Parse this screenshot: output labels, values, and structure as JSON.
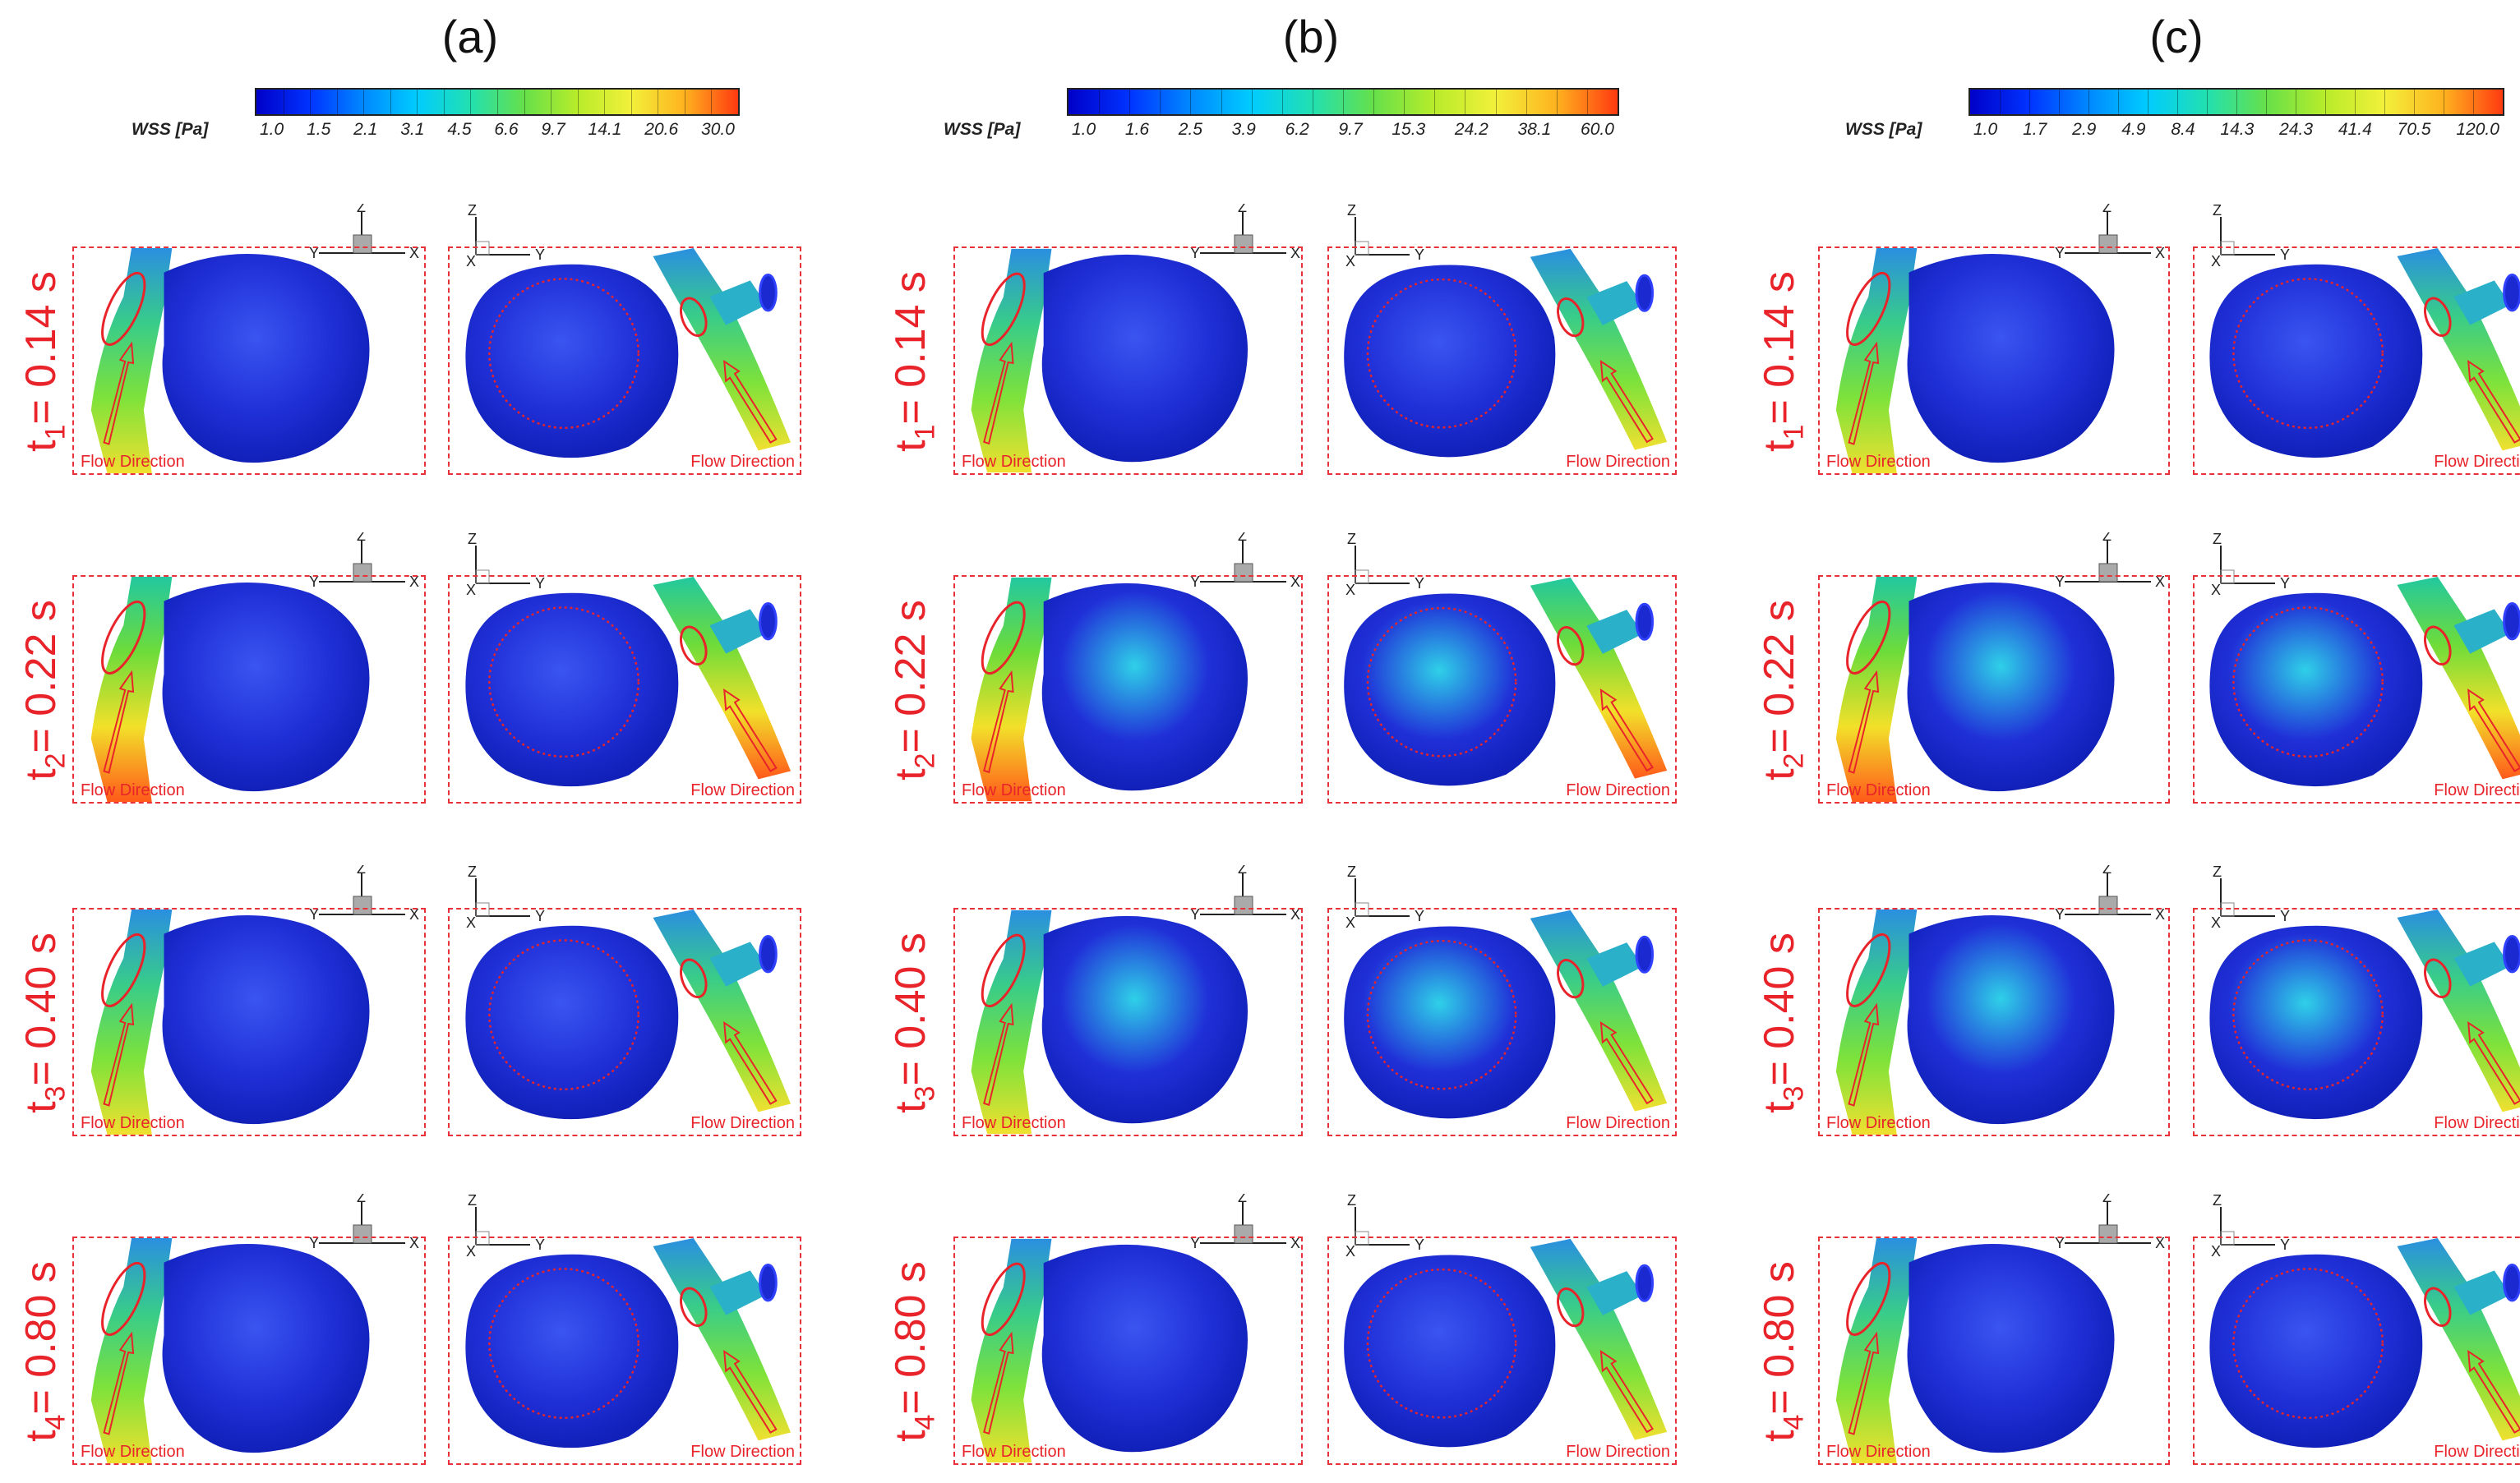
{
  "figure": {
    "panels": [
      {
        "id": "a",
        "label": "(a)",
        "colorbar": {
          "title": "WSS [Pa]",
          "ticks": [
            "1.0",
            "1.5",
            "2.1",
            "3.1",
            "4.5",
            "6.6",
            "9.7",
            "14.1",
            "20.6",
            "30.0"
          ],
          "colors": [
            "#0000c8",
            "#0033ff",
            "#0088ff",
            "#00ccff",
            "#22e0b0",
            "#66e04a",
            "#b8ec2a",
            "#f2f03a",
            "#ffb21f",
            "#ff3a10"
          ]
        }
      },
      {
        "id": "b",
        "label": "(b)",
        "colorbar": {
          "title": "WSS [Pa]",
          "ticks": [
            "1.0",
            "1.6",
            "2.5",
            "3.9",
            "6.2",
            "9.7",
            "15.3",
            "24.2",
            "38.1",
            "60.0"
          ],
          "colors": [
            "#0000c8",
            "#0033ff",
            "#0088ff",
            "#00ccff",
            "#22e0b0",
            "#66e04a",
            "#b8ec2a",
            "#f2f03a",
            "#ffb21f",
            "#ff3a10"
          ]
        }
      },
      {
        "id": "c",
        "label": "(c)",
        "colorbar": {
          "title": "WSS [Pa]",
          "ticks": [
            "1.0",
            "1.7",
            "2.9",
            "4.9",
            "8.4",
            "14.3",
            "24.3",
            "41.4",
            "70.5",
            "120.0"
          ],
          "colors": [
            "#0000c8",
            "#0033ff",
            "#0088ff",
            "#00ccff",
            "#22e0b0",
            "#66e04a",
            "#b8ec2a",
            "#f2f03a",
            "#ffb21f",
            "#ff3a10"
          ]
        }
      }
    ],
    "rows": [
      {
        "t_sub": "1",
        "time": "= 0.14 s"
      },
      {
        "t_sub": "2",
        "time": "= 0.22 s"
      },
      {
        "t_sub": "3",
        "time": "= 0.40 s"
      },
      {
        "t_sub": "4",
        "time": "= 0.80 s"
      }
    ],
    "flow_label": "Flow Direction",
    "axis_letters": {
      "x": "X",
      "y": "Y",
      "z": "Z"
    },
    "colors": {
      "annotation_red": "#e8232a",
      "surface_blue": "#1f2fd6"
    }
  }
}
